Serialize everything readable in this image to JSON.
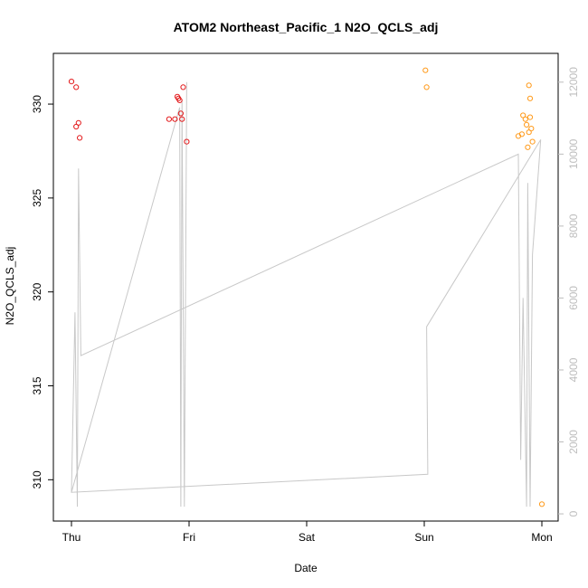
{
  "chart_data": {
    "type": "scatter",
    "title": "ATOM2 Northeast_Pacific_1 N2O_QCLS_adj",
    "xlabel": "Date",
    "ylabel": "N2O_QCLS_adj",
    "x_ticks": [
      "Thu",
      "Fri",
      "Sat",
      "Sun",
      "Mon"
    ],
    "x_range_days": [
      -0.1,
      4.1
    ],
    "ylim": [
      307.8,
      332.7
    ],
    "y_ticks": [
      310,
      315,
      320,
      325,
      330
    ],
    "y2lim": [
      -200,
      12800
    ],
    "y2_ticks": [
      0,
      2000,
      4000,
      6000,
      8000,
      10000,
      12000
    ],
    "colors": {
      "early": "#e31a1c",
      "late": "#ff9a1a",
      "line": "#c8c8c8"
    },
    "series": [
      {
        "color_key": "early",
        "points": [
          {
            "x": 0.0,
            "y": 331.2
          },
          {
            "x": 0.04,
            "y": 330.9
          },
          {
            "x": 0.04,
            "y": 328.8
          },
          {
            "x": 0.06,
            "y": 329.0
          },
          {
            "x": 0.07,
            "y": 328.2
          },
          {
            "x": 0.83,
            "y": 329.2
          },
          {
            "x": 0.88,
            "y": 329.2
          },
          {
            "x": 0.9,
            "y": 330.4
          },
          {
            "x": 0.91,
            "y": 330.3
          },
          {
            "x": 0.92,
            "y": 330.2
          },
          {
            "x": 0.93,
            "y": 329.5
          },
          {
            "x": 0.94,
            "y": 329.2
          },
          {
            "x": 0.95,
            "y": 330.9
          },
          {
            "x": 0.98,
            "y": 328.0
          }
        ]
      },
      {
        "color_key": "late",
        "points": [
          {
            "x": 3.01,
            "y": 331.8
          },
          {
            "x": 3.02,
            "y": 330.9
          },
          {
            "x": 3.8,
            "y": 328.3
          },
          {
            "x": 3.83,
            "y": 328.4
          },
          {
            "x": 3.84,
            "y": 329.4
          },
          {
            "x": 3.86,
            "y": 329.2
          },
          {
            "x": 3.87,
            "y": 328.9
          },
          {
            "x": 3.88,
            "y": 327.7
          },
          {
            "x": 3.89,
            "y": 328.5
          },
          {
            "x": 3.89,
            "y": 331.0
          },
          {
            "x": 3.9,
            "y": 329.3
          },
          {
            "x": 3.9,
            "y": 330.3
          },
          {
            "x": 3.91,
            "y": 328.7
          },
          {
            "x": 3.92,
            "y": 328.0
          },
          {
            "x": 4.0,
            "y": 308.7
          }
        ]
      }
    ],
    "secondary_line": {
      "axis": "right",
      "points": [
        {
          "x": 0.0,
          "y": 600
        },
        {
          "x": 0.03,
          "y": 5600
        },
        {
          "x": 0.05,
          "y": 200
        },
        {
          "x": 0.06,
          "y": 9600
        },
        {
          "x": 0.08,
          "y": 4400
        },
        {
          "x": 3.8,
          "y": 10000
        },
        {
          "x": 3.82,
          "y": 1500
        },
        {
          "x": 3.84,
          "y": 6000
        },
        {
          "x": 3.87,
          "y": 200
        },
        {
          "x": 3.88,
          "y": 9200
        },
        {
          "x": 3.9,
          "y": 200
        },
        {
          "x": 3.92,
          "y": 7200
        },
        {
          "x": 3.99,
          "y": 10400
        },
        {
          "x": 3.02,
          "y": 5200
        },
        {
          "x": 3.03,
          "y": 1100
        },
        {
          "x": 0.0,
          "y": 600
        },
        {
          "x": 0.92,
          "y": 11300
        },
        {
          "x": 0.93,
          "y": 200
        },
        {
          "x": 0.94,
          "y": 11500
        },
        {
          "x": 0.96,
          "y": 200
        },
        {
          "x": 0.98,
          "y": 12000
        }
      ]
    }
  }
}
